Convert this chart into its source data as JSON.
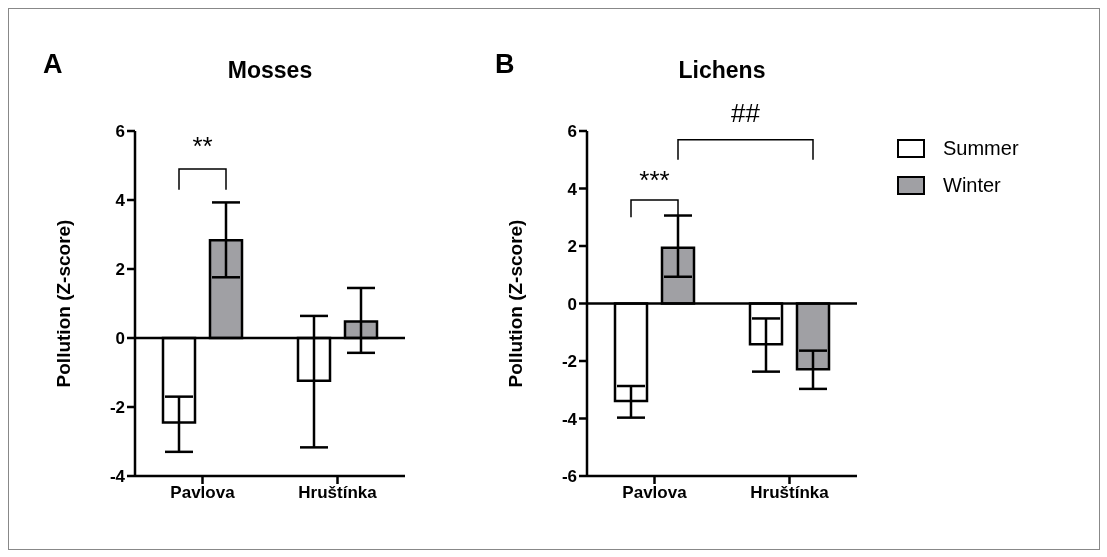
{
  "chart_data": [
    {
      "type": "bar",
      "title": "Mosses",
      "ylabel": "Pollution (Z-score)",
      "categories": [
        "Pavlova",
        "Hruštínka"
      ],
      "series": [
        {
          "color": "#ffffff",
          "values": [
            -2.45,
            -1.24
          ],
          "errors": [
            [
              -3.3,
              -1.7
            ],
            [
              -3.17,
              0.64
            ]
          ]
        },
        {
          "color": "#a0a0a4",
          "values": [
            2.83,
            0.48
          ],
          "errors": [
            [
              1.76,
              3.93
            ],
            [
              -0.43,
              1.45
            ]
          ]
        }
      ],
      "ylim": [
        -4,
        6
      ],
      "yticks": [
        -4,
        -2,
        0,
        2,
        4,
        6
      ],
      "grid": false,
      "legend": false,
      "ref_lines": [
        {
          "axis": "y",
          "value": 0
        }
      ],
      "annotations": [
        "A",
        "**"
      ]
    },
    {
      "type": "bar",
      "title": "Lichens",
      "ylabel": "Pollution (Z-score)",
      "categories": [
        "Pavlova",
        "Hruštínka"
      ],
      "series": [
        {
          "name": "Summer",
          "color": "#ffffff",
          "values": [
            -3.39,
            -1.42
          ],
          "errors": [
            [
              -3.97,
              -2.87
            ],
            [
              -2.37,
              -0.52
            ]
          ]
        },
        {
          "name": "Winter",
          "color": "#a0a0a4",
          "values": [
            1.94,
            -2.29
          ],
          "errors": [
            [
              0.93,
              3.06
            ],
            [
              -2.97,
              -1.64
            ]
          ]
        }
      ],
      "ylim": [
        -6,
        6
      ],
      "yticks": [
        -6,
        -4,
        -2,
        0,
        2,
        4,
        6
      ],
      "grid": false,
      "legend": "right",
      "ref_lines": [
        {
          "axis": "y",
          "value": 0
        }
      ],
      "annotations": [
        "B",
        "***",
        "##"
      ]
    }
  ]
}
